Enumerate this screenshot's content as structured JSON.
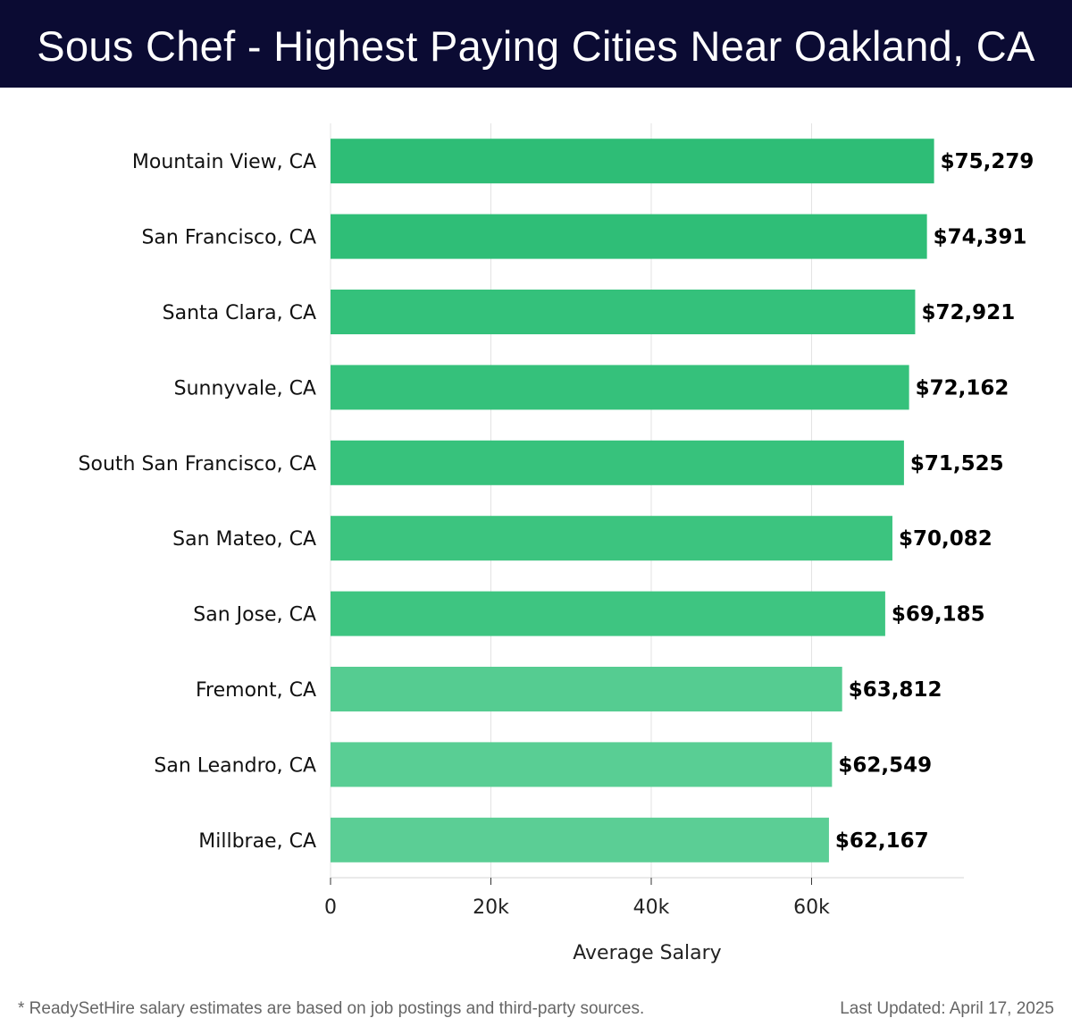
{
  "header": {
    "title": "Sous Chef - Highest Paying Cities Near Oakland, CA"
  },
  "chart_data": {
    "type": "bar",
    "orientation": "horizontal",
    "title": "Sous Chef - Highest Paying Cities Near Oakland, CA",
    "xlabel": "Average Salary",
    "ylabel": "",
    "xlim": [
      0,
      79000
    ],
    "xticks": [
      0,
      20000,
      40000,
      60000
    ],
    "xtick_labels": [
      "0",
      "20k",
      "40k",
      "60k"
    ],
    "grid": true,
    "categories": [
      "Mountain View, CA",
      "San Francisco, CA",
      "Santa Clara, CA",
      "Sunnyvale, CA",
      "South San Francisco, CA",
      "San Mateo, CA",
      "San Jose, CA",
      "Fremont, CA",
      "San Leandro, CA",
      "Millbrae, CA"
    ],
    "values": [
      75279,
      74391,
      72921,
      72162,
      71525,
      70082,
      69185,
      63812,
      62549,
      62167
    ],
    "value_labels": [
      "$75,279",
      "$74,391",
      "$72,921",
      "$72,162",
      "$71,525",
      "$70,082",
      "$69,185",
      "$63,812",
      "$62,549",
      "$62,167"
    ],
    "colors": [
      "#2ebd76",
      "#2fbe77",
      "#34c17b",
      "#35c17b",
      "#37c27c",
      "#3cc47f",
      "#3ec581",
      "#55cc91",
      "#59ce94",
      "#5bce95"
    ]
  },
  "footer": {
    "note": "* ReadySetHire salary estimates are based on job postings and third-party sources.",
    "updated": "Last Updated: April 17, 2025"
  }
}
